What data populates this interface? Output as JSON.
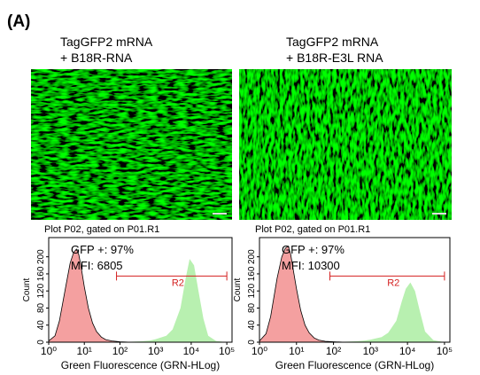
{
  "figure_label": "(A)",
  "images": [
    {
      "caption": [
        "TagGFP2 mRNA",
        "+ B18R-RNA"
      ]
    },
    {
      "caption": [
        "TagGFP2 mRNA",
        "+ B18R-E3L RNA"
      ]
    }
  ],
  "chart_data": [
    {
      "type": "histogram",
      "title": "Plot P02, gated on P01.R1",
      "xlabel": "Green Fluorescence (GRN-HLog)",
      "ylabel": "Count",
      "annotations": [
        "GFP +: 97%",
        "MFI: 6805"
      ],
      "gate": {
        "label": "R2",
        "range": [
          80,
          100000
        ],
        "level": 155,
        "color": "#d42020"
      },
      "xscale": "log",
      "xlim": [
        1,
        140000
      ],
      "xticks": [
        {
          "value": 1,
          "label": "10⁰"
        },
        {
          "value": 10,
          "label": "10¹"
        },
        {
          "value": 100,
          "label": "10²"
        },
        {
          "value": 1000,
          "label": "10³"
        },
        {
          "value": 10000,
          "label": "10⁴"
        },
        {
          "value": 100000,
          "label": "10⁵"
        }
      ],
      "ylim": [
        0,
        245
      ],
      "yticks": [
        0,
        40,
        80,
        120,
        160,
        200
      ],
      "x": [
        1,
        1.5,
        2,
        3,
        4,
        5,
        6,
        7,
        8,
        10,
        13,
        17,
        22,
        30,
        40,
        60,
        100,
        200,
        400,
        700,
        1000,
        2000,
        3000,
        5000,
        7000,
        9000,
        12000,
        16000,
        22000,
        30000,
        50000,
        100000
      ],
      "series": [
        {
          "color": "#f4a0a0",
          "values": [
            3,
            15,
            50,
            130,
            185,
            210,
            218,
            205,
            180,
            130,
            80,
            45,
            25,
            12,
            6,
            3,
            1,
            0,
            0,
            0,
            0,
            0,
            0,
            0,
            0,
            0,
            0,
            0,
            0,
            0,
            0,
            0
          ]
        },
        {
          "color": "#b8f0b0",
          "values": [
            0,
            0,
            0,
            0,
            0,
            0,
            0,
            0,
            0,
            0,
            0,
            0,
            0,
            0,
            0,
            0,
            0,
            1,
            2,
            4,
            7,
            15,
            30,
            80,
            150,
            195,
            180,
            120,
            55,
            15,
            3,
            0
          ]
        }
      ]
    },
    {
      "type": "histogram",
      "title": "Plot P02, gated on P01.R1",
      "xlabel": "Green Fluorescence (GRN-HLog)",
      "ylabel": "Count",
      "annotations": [
        "GFP +: 97%",
        "MFI: 10300"
      ],
      "gate": {
        "label": "R2",
        "range": [
          80,
          100000
        ],
        "level": 155,
        "color": "#d42020"
      },
      "xscale": "log",
      "xlim": [
        1,
        140000
      ],
      "xticks": [
        {
          "value": 1,
          "label": "10⁰"
        },
        {
          "value": 10,
          "label": "10¹"
        },
        {
          "value": 100,
          "label": "10²"
        },
        {
          "value": 1000,
          "label": "10³"
        },
        {
          "value": 10000,
          "label": "10⁴"
        },
        {
          "value": 100000,
          "label": "10⁵"
        }
      ],
      "ylim": [
        0,
        245
      ],
      "yticks": [
        0,
        40,
        80,
        120,
        160,
        200
      ],
      "x": [
        1,
        1.5,
        2,
        3,
        4,
        5,
        6,
        7,
        8,
        10,
        13,
        17,
        22,
        30,
        40,
        60,
        100,
        200,
        400,
        700,
        1000,
        2000,
        3000,
        5000,
        7000,
        9000,
        12000,
        16000,
        22000,
        30000,
        50000,
        100000
      ],
      "series": [
        {
          "color": "#f4a0a0",
          "values": [
            3,
            20,
            60,
            150,
            200,
            220,
            225,
            205,
            175,
            125,
            75,
            40,
            22,
            10,
            5,
            2,
            1,
            0,
            0,
            0,
            0,
            0,
            0,
            0,
            0,
            0,
            0,
            0,
            0,
            0,
            0,
            0
          ]
        },
        {
          "color": "#b8f0b0",
          "values": [
            0,
            0,
            0,
            0,
            0,
            0,
            0,
            0,
            0,
            0,
            0,
            0,
            0,
            0,
            0,
            0,
            0,
            1,
            2,
            4,
            6,
            12,
            22,
            50,
            95,
            125,
            140,
            120,
            70,
            25,
            5,
            0
          ]
        }
      ]
    }
  ]
}
